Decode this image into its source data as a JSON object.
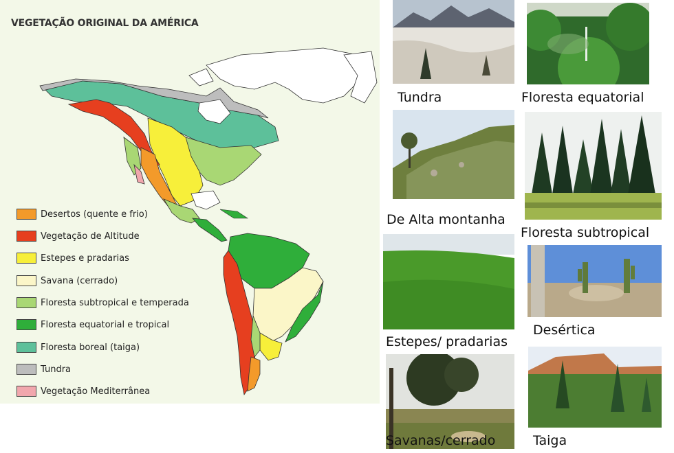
{
  "map": {
    "title": "VEGETAÇÃO ORIGINAL DA AMÉRICA",
    "legend": [
      {
        "label": "Desertos (quente e frio)",
        "color": "#f39a2a"
      },
      {
        "label": "Vegetação de Altitude",
        "color": "#e63f1f"
      },
      {
        "label": "Estepes e pradarias",
        "color": "#f7ef3a"
      },
      {
        "label": "Savana (cerrado)",
        "color": "#fbf6c8"
      },
      {
        "label": "Floresta subtropical e temperada",
        "color": "#a9d774"
      },
      {
        "label": "Floresta equatorial e tropical",
        "color": "#2fae3a"
      },
      {
        "label": "Floresta boreal (taiga)",
        "color": "#5dc09a"
      },
      {
        "label": "Tundra",
        "color": "#bdbdbd"
      },
      {
        "label": "Vegetação Mediterrânea",
        "color": "#f1a7ad"
      }
    ]
  },
  "photos": [
    {
      "caption": "Tundra",
      "icon": "tundra-photo"
    },
    {
      "caption": "Floresta equatorial",
      "icon": "equatorial-forest-photo"
    },
    {
      "caption": "De Alta montanha",
      "icon": "mountain-photo"
    },
    {
      "caption": "Floresta subtropical",
      "icon": "subtropical-forest-photo"
    },
    {
      "caption": "Estepes/ pradarias",
      "icon": "steppe-photo"
    },
    {
      "caption": "Desértica",
      "icon": "desert-photo"
    },
    {
      "caption": "Savanas/cerrado",
      "icon": "savanna-photo"
    },
    {
      "caption": "Taiga",
      "icon": "taiga-photo"
    }
  ]
}
